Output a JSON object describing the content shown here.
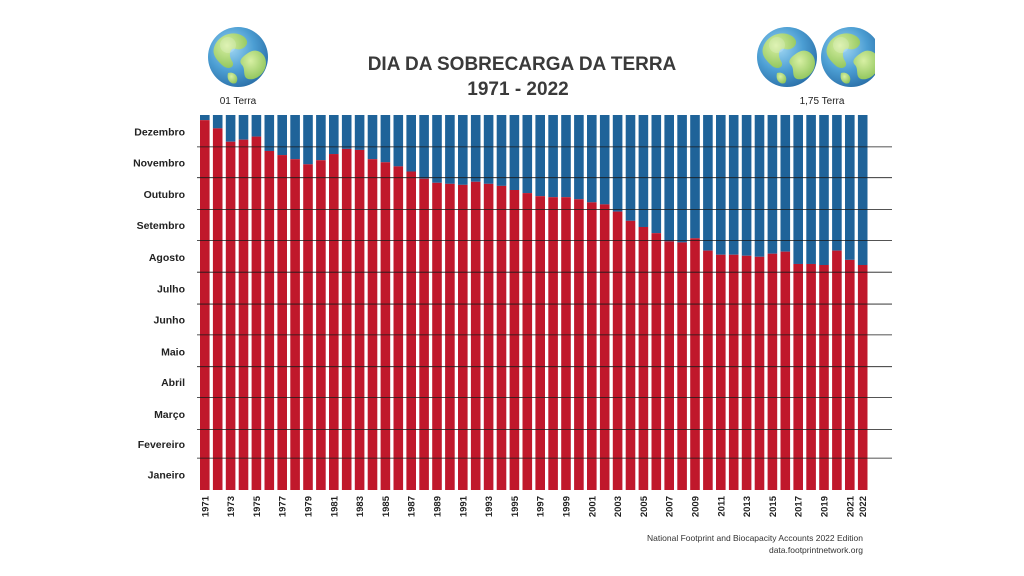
{
  "colors": {
    "overshoot": "#c0182b",
    "remaining": "#1f6399",
    "grid": "#1a1a1a",
    "title": "#3a3a3a"
  },
  "icons": {
    "left_earth": "earth-globe-icon",
    "right_earths": [
      "earth-globe-icon",
      "earth-globe-icon"
    ]
  },
  "labels": {
    "left_earth": "01 Terra",
    "right_earth": "1,75 Terra"
  },
  "source": {
    "line1": "National Footprint and Biocapacity Accounts 2022 Edition",
    "line2": "data.footprintnetwork.org"
  },
  "chart_data": {
    "type": "bar",
    "title_line1": "DIA DA SOBRECARGA DA TERRA",
    "title_line2": "1971 - 2022",
    "y_unit": "day of year",
    "ylim": [
      1,
      365
    ],
    "y_ticks": [
      {
        "label": "Janeiro",
        "value": 15
      },
      {
        "label": "Fevereiro",
        "value": 45
      },
      {
        "label": "Março",
        "value": 74
      },
      {
        "label": "Abril",
        "value": 105
      },
      {
        "label": "Maio",
        "value": 135
      },
      {
        "label": "Junho",
        "value": 166
      },
      {
        "label": "Julho",
        "value": 196
      },
      {
        "label": "Agosto",
        "value": 227
      },
      {
        "label": "Setembro",
        "value": 258
      },
      {
        "label": "Outubro",
        "value": 288
      },
      {
        "label": "Novembro",
        "value": 319
      },
      {
        "label": "Dezembro",
        "value": 349
      }
    ],
    "x_tick_labels": [
      "1971",
      "1973",
      "1975",
      "1977",
      "1979",
      "1981",
      "1983",
      "1985",
      "1987",
      "1989",
      "1991",
      "1993",
      "1995",
      "1997",
      "1999",
      "2001",
      "2003",
      "2005",
      "2007",
      "2009",
      "2011",
      "2013",
      "2015",
      "2017",
      "2019",
      "2021",
      "2022"
    ],
    "x": [
      1971,
      1972,
      1973,
      1974,
      1975,
      1976,
      1977,
      1978,
      1979,
      1980,
      1981,
      1982,
      1983,
      1984,
      1985,
      1986,
      1987,
      1988,
      1989,
      1990,
      1991,
      1992,
      1993,
      1994,
      1995,
      1996,
      1997,
      1998,
      1999,
      2000,
      2001,
      2002,
      2003,
      2004,
      2005,
      2006,
      2007,
      2008,
      2009,
      2010,
      2011,
      2012,
      2013,
      2014,
      2015,
      2016,
      2017,
      2018,
      2019,
      2020,
      2021,
      2022
    ],
    "series": [
      {
        "values": [
          360,
          352,
          339,
          341,
          344,
          330,
          326,
          322,
          317,
          321,
          327,
          332,
          331,
          322,
          319,
          315,
          310,
          303,
          299,
          298,
          297,
          300,
          298,
          296,
          292,
          289,
          286,
          285,
          285,
          283,
          280,
          278,
          271,
          262,
          256,
          250,
          242,
          241,
          245,
          233,
          229,
          229,
          228,
          227,
          230,
          232,
          220,
          220,
          219,
          233,
          224,
          219
        ]
      }
    ],
    "grid": true,
    "legend": "none"
  }
}
